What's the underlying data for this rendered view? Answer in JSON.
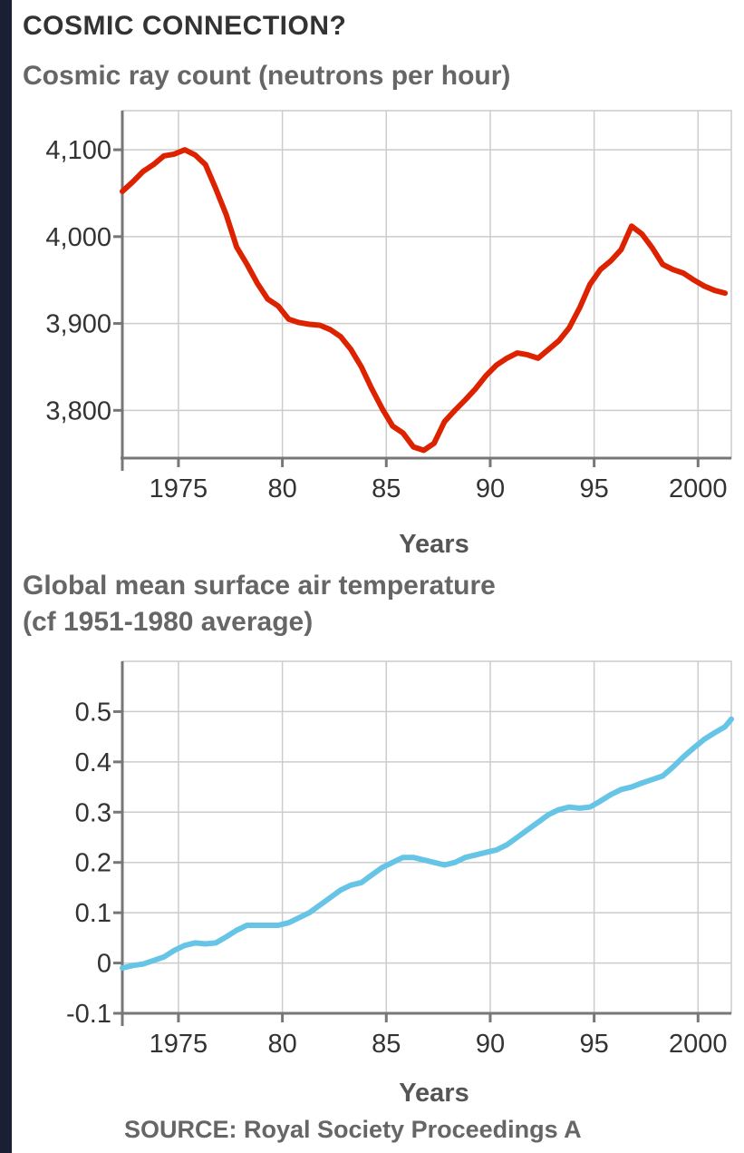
{
  "page": {
    "title": "COSMIC CONNECTION?",
    "source": "SOURCE: Royal Society Proceedings A"
  },
  "chart_data": [
    {
      "type": "line",
      "title": "Cosmic ray count (neutrons per hour)",
      "xlabel": "Years",
      "ylabel": "",
      "xlim": [
        1972.3,
        2001.6
      ],
      "ylim": [
        3745,
        4145
      ],
      "x_ticks": [
        1975,
        1980,
        1985,
        1990,
        1995,
        2000
      ],
      "x_tick_labels": [
        "1975",
        "80",
        "85",
        "90",
        "95",
        "2000"
      ],
      "y_ticks": [
        3800,
        3900,
        4000,
        4100
      ],
      "y_tick_labels": [
        "3,800",
        "3,900",
        "4,000",
        "4,100"
      ],
      "grid": true,
      "color": "#dd2200",
      "series": [
        {
          "x": [
            1972.3,
            1972.8,
            1973.3,
            1973.8,
            1974.3,
            1974.8,
            1975.3,
            1975.8,
            1976.3,
            1976.8,
            1977.3,
            1977.8,
            1978.3,
            1978.8,
            1979.3,
            1979.8,
            1980.3,
            1980.8,
            1981.3,
            1981.8,
            1982.3,
            1982.8,
            1983.3,
            1983.8,
            1984.3,
            1984.8,
            1985.3,
            1985.8,
            1986.3,
            1986.8,
            1987.3,
            1987.8,
            1988.3,
            1988.8,
            1989.3,
            1989.8,
            1990.3,
            1990.8,
            1991.3,
            1991.8,
            1992.3,
            1992.8,
            1993.3,
            1993.8,
            1994.3,
            1994.8,
            1995.3,
            1995.8,
            1996.3,
            1996.8,
            1997.3,
            1997.8,
            1998.3,
            1998.8,
            1999.3,
            1999.8,
            2000.3,
            2000.8,
            2001.3
          ],
          "values": [
            4052,
            4063,
            4075,
            4083,
            4093,
            4095,
            4100,
            4094,
            4083,
            4055,
            4025,
            3988,
            3968,
            3946,
            3928,
            3920,
            3905,
            3901,
            3899,
            3898,
            3893,
            3885,
            3870,
            3850,
            3825,
            3802,
            3782,
            3774,
            3758,
            3754,
            3762,
            3787,
            3800,
            3812,
            3825,
            3840,
            3852,
            3860,
            3866,
            3864,
            3860,
            3870,
            3880,
            3895,
            3918,
            3945,
            3962,
            3972,
            3985,
            4012,
            4003,
            3987,
            3968,
            3962,
            3958,
            3950,
            3943,
            3938,
            3935
          ]
        }
      ]
    },
    {
      "type": "line",
      "title": "Global mean surface air temperature",
      "subtitle": "(cf 1951-1980 average)",
      "xlabel": "Years",
      "ylabel": "",
      "xlim": [
        1972.3,
        2001.6
      ],
      "ylim": [
        -0.1,
        0.6
      ],
      "x_ticks": [
        1975,
        1980,
        1985,
        1990,
        1995,
        2000
      ],
      "x_tick_labels": [
        "1975",
        "80",
        "85",
        "90",
        "95",
        "2000"
      ],
      "y_ticks": [
        -0.1,
        0,
        0.1,
        0.2,
        0.3,
        0.4,
        0.5
      ],
      "y_tick_labels": [
        "-0.1",
        "0",
        "0.1",
        "0.2",
        "0.3",
        "0.4",
        "0.5"
      ],
      "grid": true,
      "color": "#66c4e6",
      "series": [
        {
          "x": [
            1972.3,
            1972.8,
            1973.3,
            1973.8,
            1974.3,
            1974.8,
            1975.3,
            1975.8,
            1976.3,
            1976.8,
            1977.3,
            1977.8,
            1978.3,
            1978.8,
            1979.3,
            1979.8,
            1980.3,
            1980.8,
            1981.3,
            1981.8,
            1982.3,
            1982.8,
            1983.3,
            1983.8,
            1984.3,
            1984.8,
            1985.3,
            1985.8,
            1986.3,
            1986.8,
            1987.3,
            1987.8,
            1988.3,
            1988.8,
            1989.3,
            1989.8,
            1990.3,
            1990.8,
            1991.3,
            1991.8,
            1992.3,
            1992.8,
            1993.3,
            1993.8,
            1994.3,
            1994.8,
            1995.3,
            1995.8,
            1996.3,
            1996.8,
            1997.3,
            1997.8,
            1998.3,
            1998.8,
            1999.3,
            1999.8,
            2000.3,
            2000.8,
            2001.3,
            2001.6
          ],
          "values": [
            -0.01,
            -0.005,
            -0.002,
            0.005,
            0.012,
            0.025,
            0.035,
            0.04,
            0.038,
            0.04,
            0.052,
            0.065,
            0.075,
            0.075,
            0.075,
            0.075,
            0.08,
            0.09,
            0.1,
            0.115,
            0.13,
            0.145,
            0.155,
            0.16,
            0.175,
            0.19,
            0.2,
            0.21,
            0.21,
            0.205,
            0.2,
            0.195,
            0.2,
            0.21,
            0.215,
            0.22,
            0.225,
            0.235,
            0.25,
            0.265,
            0.28,
            0.295,
            0.305,
            0.31,
            0.308,
            0.31,
            0.322,
            0.335,
            0.345,
            0.35,
            0.358,
            0.365,
            0.372,
            0.39,
            0.41,
            0.428,
            0.445,
            0.458,
            0.47,
            0.485
          ]
        }
      ]
    }
  ]
}
